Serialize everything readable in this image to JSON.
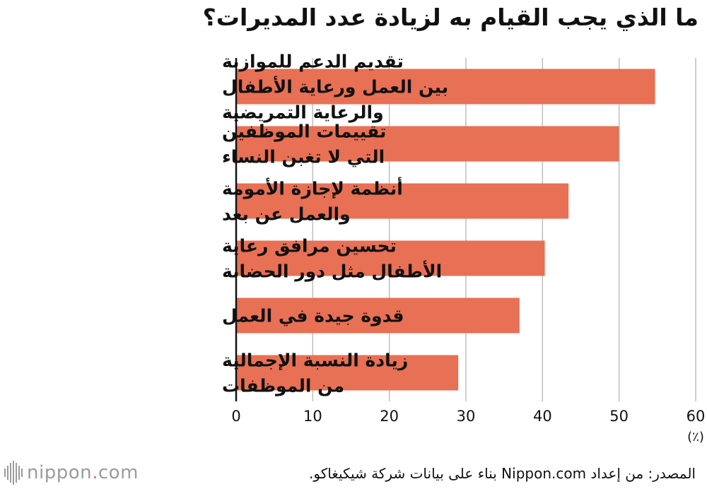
{
  "title": "ما الذي يجب القيام به لزيادة عدد المديرات؟",
  "chart_data": {
    "type": "bar",
    "orientation": "horizontal",
    "categories": [
      "تقديم الدعم للموازنة بين العمل ورعاية الأطفال والرعاية التمريضية",
      "تقييمات الموظفين التي لا تغبن النساء",
      "أنظمة لإجازة الأمومة والعمل عن بعد",
      "تحسين مرافق رعاية الأطفال مثل دور الحضانة",
      "قدوة جيدة في العمل",
      "زيادة النسبة الإجمالية من الموظفات"
    ],
    "category_lines": [
      [
        "تقديم الدعم للموازنة",
        "بين العمل ورعاية الأطفال",
        "والرعاية التمريضية"
      ],
      [
        "تقييمات الموظفين",
        "التي لا تغبن النساء"
      ],
      [
        "أنظمة لإجازة الأمومة",
        "والعمل عن بعد"
      ],
      [
        "تحسين مرافق رعاية",
        "الأطفال مثل دور الحضانة"
      ],
      [
        "قدوة جيدة في العمل"
      ],
      [
        "زيادة النسبة الإجمالية",
        "من الموظفات"
      ]
    ],
    "values": [
      54.7,
      50.0,
      43.4,
      40.3,
      37.0,
      29.0
    ],
    "xlim": [
      0,
      60
    ],
    "xticks": [
      0,
      10,
      20,
      30,
      40,
      50,
      60
    ],
    "unit_label": "(٪)",
    "grid": true,
    "bar_color": "#e87054",
    "grid_color": "#bdbdbd"
  },
  "source": "المصدر: من إعداد Nippon.com بناء على بيانات شركة شيكيغاكو.",
  "logo": {
    "name": "nippon",
    "dot": ".",
    "suffix": "com"
  }
}
